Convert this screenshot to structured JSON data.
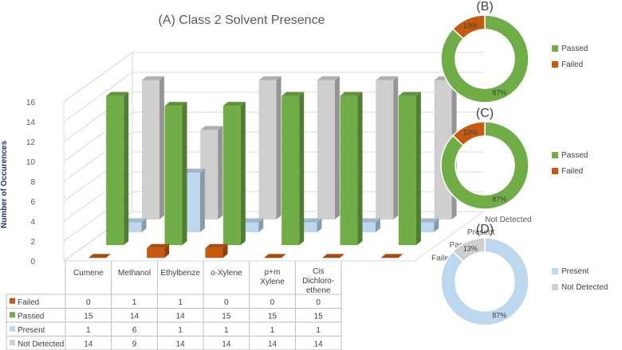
{
  "chart_data": [
    {
      "type": "bar",
      "panel_label": "",
      "title": "(A) Class 2 Solvent Presence",
      "ylabel": "Number of Occurences",
      "ylim": [
        0,
        16
      ],
      "yticks": [
        "0",
        "2",
        "4",
        "6",
        "8",
        "10",
        "12",
        "14",
        "16"
      ],
      "categories": [
        "Cumene",
        "Methanol",
        "Ethylbenze",
        "o-Xylene",
        "p+m Xylene",
        "Cis Dichloro-ethene"
      ],
      "series": [
        {
          "name": "Failed",
          "values": [
            0,
            1,
            1,
            0,
            0,
            0
          ],
          "color": "#c55a11"
        },
        {
          "name": "Passed",
          "values": [
            15,
            14,
            14,
            15,
            15,
            15
          ],
          "color": "#70ad47"
        },
        {
          "name": "Present",
          "values": [
            1,
            6,
            1,
            1,
            1,
            1
          ],
          "color": "#bdd7ee"
        },
        {
          "name": "Not Detected",
          "values": [
            14,
            9,
            14,
            14,
            14,
            14
          ],
          "color": "#d0cece"
        }
      ],
      "depth_labels": [
        "Not Detected",
        "Present",
        "Passed",
        "Failed"
      ]
    },
    {
      "type": "pie",
      "panel_label": "(B)",
      "labels": [
        "Passed",
        "Failed"
      ],
      "values": [
        87,
        13
      ],
      "data_labels": [
        "87%",
        "13%"
      ],
      "colors": [
        "#70ad47",
        "#c55a11"
      ]
    },
    {
      "type": "pie",
      "panel_label": "(C)",
      "labels": [
        "Passed",
        "Failed"
      ],
      "values": [
        87,
        13
      ],
      "data_labels": [
        "87%",
        "13%"
      ],
      "colors": [
        "#70ad47",
        "#c55a11"
      ]
    },
    {
      "type": "pie",
      "panel_label": "(D)",
      "labels": [
        "Present",
        "Not Detected"
      ],
      "values": [
        87,
        13
      ],
      "data_labels": [
        "87%",
        "13%"
      ],
      "colors": [
        "#bdd7ee",
        "#d0cece"
      ]
    }
  ]
}
